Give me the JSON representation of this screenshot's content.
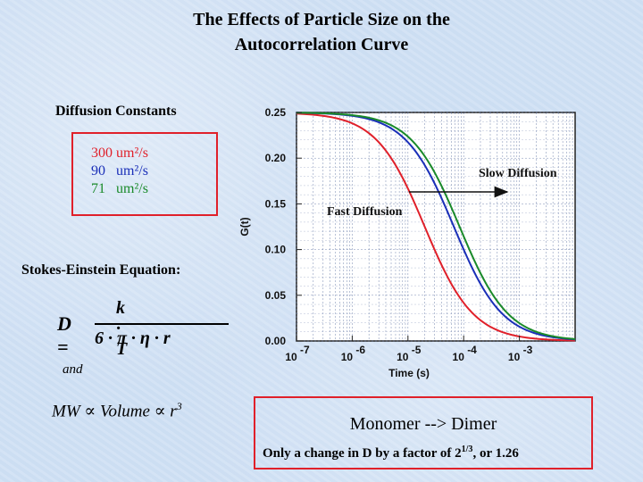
{
  "slide": {
    "title_line1": "The Effects of Particle Size on the",
    "title_line2": "Autocorrelation Curve",
    "diffusion_heading": "Diffusion Constants",
    "constants": [
      {
        "value": "300",
        "unit": "um²/s",
        "color": "#e0202a"
      },
      {
        "value": "90",
        "unit": "um²/s",
        "color": "#1a2fb8"
      },
      {
        "value": "71",
        "unit": "um²/s",
        "color": "#1a8a2a"
      }
    ],
    "stokes_heading": "Stokes-Einstein Equation:",
    "equation": {
      "lhs": "D =",
      "numerator": "k · T",
      "denominator": "6 · π · η · r"
    },
    "and_text": "and",
    "proportionality": {
      "text": "MW ∝ Volume ∝ r",
      "exponent": "3"
    },
    "dimer": {
      "title": "Monomer --> Dimer",
      "note_pre": "Only a change in D by a factor of 2",
      "note_exp": "1/3",
      "note_post": ", or 1.26"
    }
  },
  "chart_data": {
    "type": "line",
    "title": "",
    "xlabel": "Time (s)",
    "ylabel": "G(t)",
    "x_scale": "log",
    "xlim": [
      1e-07,
      0.01
    ],
    "ylim": [
      0.0,
      0.25
    ],
    "x_ticks": [
      {
        "base": "10",
        "exp": "-7",
        "value": 1e-07
      },
      {
        "base": "10",
        "exp": "-6",
        "value": 1e-06
      },
      {
        "base": "10",
        "exp": "-5",
        "value": 1e-05
      },
      {
        "base": "10",
        "exp": "-4",
        "value": 0.0001
      },
      {
        "base": "10",
        "exp": "-3",
        "value": 0.001
      }
    ],
    "y_ticks": [
      "0.00",
      "0.05",
      "0.10",
      "0.15",
      "0.20",
      "0.25"
    ],
    "grid": true,
    "series": [
      {
        "name": "300 um²/s",
        "color": "#e0202a",
        "g0": 0.25,
        "tau_d": 2e-05
      },
      {
        "name": "90 um²/s",
        "color": "#1a2fb8",
        "g0": 0.25,
        "tau_d": 6.67e-05
      },
      {
        "name": "71 um²/s",
        "color": "#1a8a2a",
        "g0": 0.25,
        "tau_d": 8.45e-05
      }
    ],
    "annotations": {
      "slow": "Slow Diffusion",
      "fast": "Fast Diffusion"
    }
  }
}
